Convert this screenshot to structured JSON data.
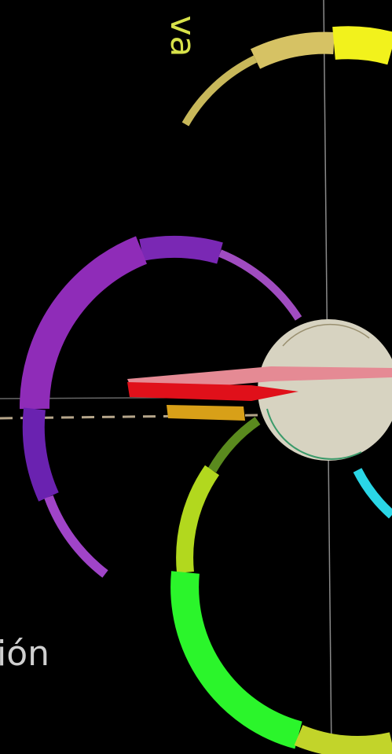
{
  "labels": {
    "top": "va",
    "bottom": "ión"
  }
}
